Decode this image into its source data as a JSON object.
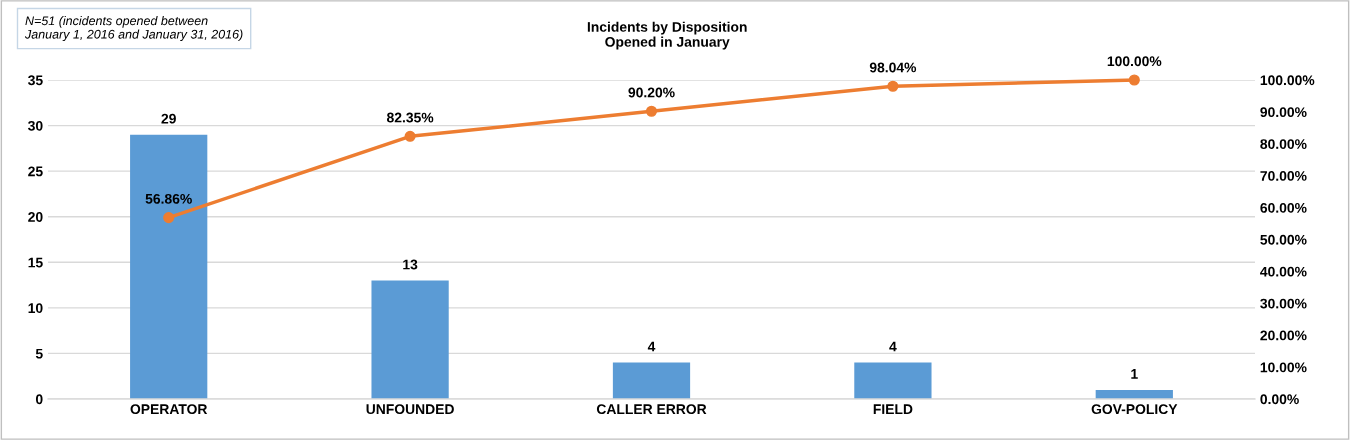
{
  "chart_data": {
    "type": "bar",
    "title": "Incidents by Disposition\nOpened in January",
    "annotations": [
      "N=51 (incidents opened between\nJanuary 1, 2016 and January 31, 2016)"
    ],
    "categories": [
      "OPERATOR",
      "UNFOUNDED",
      "CALLER ERROR",
      "FIELD",
      "GOV-POLICY"
    ],
    "series": [
      {
        "color": "#5b9bd5",
        "values": [
          29,
          13,
          4,
          4,
          1
        ],
        "value_labels": [
          "29",
          "13",
          "4",
          "4",
          "1"
        ]
      },
      {
        "type": "line",
        "axis": "y2",
        "color": "#ed7d31",
        "marker": "circle",
        "values": [
          56.86,
          82.35,
          90.2,
          98.04,
          100.0
        ],
        "value_labels": [
          "56.86%",
          "82.35%",
          "90.20%",
          "98.04%",
          "100.00%"
        ]
      }
    ],
    "ylim": [
      0,
      35
    ],
    "yticks": [
      0,
      5,
      10,
      15,
      20,
      25,
      30,
      35
    ],
    "y2lim": [
      0,
      100
    ],
    "y2ticks": [
      {
        "value": 0,
        "label": "0.00%"
      },
      {
        "value": 10,
        "label": "10.00%"
      },
      {
        "value": 20,
        "label": "20.00%"
      },
      {
        "value": 30,
        "label": "30.00%"
      },
      {
        "value": 40,
        "label": "40.00%"
      },
      {
        "value": 50,
        "label": "50.00%"
      },
      {
        "value": 60,
        "label": "60.00%"
      },
      {
        "value": 70,
        "label": "70.00%"
      },
      {
        "value": 80,
        "label": "80.00%"
      },
      {
        "value": 90,
        "label": "90.00%"
      },
      {
        "value": 100,
        "label": "100.00%"
      }
    ],
    "grid": "y",
    "legend": false
  }
}
